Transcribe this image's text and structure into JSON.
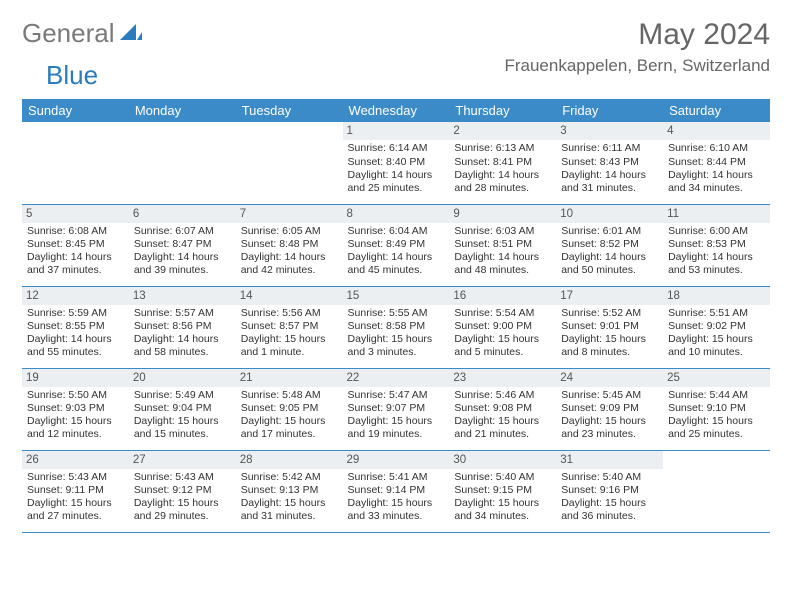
{
  "brand": {
    "part1": "General",
    "part2": "Blue"
  },
  "title": "May 2024",
  "location": "Frauenkappelen, Bern, Switzerland",
  "colors": {
    "header_bg": "#3b8bc9",
    "header_text": "#ffffff",
    "border": "#3b8bc9",
    "daynum_bg": "#eceff1",
    "text": "#333333",
    "brand_gray": "#7a7a7a",
    "brand_blue": "#2b7bbf"
  },
  "day_headers": [
    "Sunday",
    "Monday",
    "Tuesday",
    "Wednesday",
    "Thursday",
    "Friday",
    "Saturday"
  ],
  "weeks": [
    [
      {
        "blank": true
      },
      {
        "blank": true
      },
      {
        "blank": true
      },
      {
        "day": "1",
        "sunrise": "Sunrise: 6:14 AM",
        "sunset": "Sunset: 8:40 PM",
        "daylight1": "Daylight: 14 hours",
        "daylight2": "and 25 minutes."
      },
      {
        "day": "2",
        "sunrise": "Sunrise: 6:13 AM",
        "sunset": "Sunset: 8:41 PM",
        "daylight1": "Daylight: 14 hours",
        "daylight2": "and 28 minutes."
      },
      {
        "day": "3",
        "sunrise": "Sunrise: 6:11 AM",
        "sunset": "Sunset: 8:43 PM",
        "daylight1": "Daylight: 14 hours",
        "daylight2": "and 31 minutes."
      },
      {
        "day": "4",
        "sunrise": "Sunrise: 6:10 AM",
        "sunset": "Sunset: 8:44 PM",
        "daylight1": "Daylight: 14 hours",
        "daylight2": "and 34 minutes."
      }
    ],
    [
      {
        "day": "5",
        "sunrise": "Sunrise: 6:08 AM",
        "sunset": "Sunset: 8:45 PM",
        "daylight1": "Daylight: 14 hours",
        "daylight2": "and 37 minutes."
      },
      {
        "day": "6",
        "sunrise": "Sunrise: 6:07 AM",
        "sunset": "Sunset: 8:47 PM",
        "daylight1": "Daylight: 14 hours",
        "daylight2": "and 39 minutes."
      },
      {
        "day": "7",
        "sunrise": "Sunrise: 6:05 AM",
        "sunset": "Sunset: 8:48 PM",
        "daylight1": "Daylight: 14 hours",
        "daylight2": "and 42 minutes."
      },
      {
        "day": "8",
        "sunrise": "Sunrise: 6:04 AM",
        "sunset": "Sunset: 8:49 PM",
        "daylight1": "Daylight: 14 hours",
        "daylight2": "and 45 minutes."
      },
      {
        "day": "9",
        "sunrise": "Sunrise: 6:03 AM",
        "sunset": "Sunset: 8:51 PM",
        "daylight1": "Daylight: 14 hours",
        "daylight2": "and 48 minutes."
      },
      {
        "day": "10",
        "sunrise": "Sunrise: 6:01 AM",
        "sunset": "Sunset: 8:52 PM",
        "daylight1": "Daylight: 14 hours",
        "daylight2": "and 50 minutes."
      },
      {
        "day": "11",
        "sunrise": "Sunrise: 6:00 AM",
        "sunset": "Sunset: 8:53 PM",
        "daylight1": "Daylight: 14 hours",
        "daylight2": "and 53 minutes."
      }
    ],
    [
      {
        "day": "12",
        "sunrise": "Sunrise: 5:59 AM",
        "sunset": "Sunset: 8:55 PM",
        "daylight1": "Daylight: 14 hours",
        "daylight2": "and 55 minutes."
      },
      {
        "day": "13",
        "sunrise": "Sunrise: 5:57 AM",
        "sunset": "Sunset: 8:56 PM",
        "daylight1": "Daylight: 14 hours",
        "daylight2": "and 58 minutes."
      },
      {
        "day": "14",
        "sunrise": "Sunrise: 5:56 AM",
        "sunset": "Sunset: 8:57 PM",
        "daylight1": "Daylight: 15 hours",
        "daylight2": "and 1 minute."
      },
      {
        "day": "15",
        "sunrise": "Sunrise: 5:55 AM",
        "sunset": "Sunset: 8:58 PM",
        "daylight1": "Daylight: 15 hours",
        "daylight2": "and 3 minutes."
      },
      {
        "day": "16",
        "sunrise": "Sunrise: 5:54 AM",
        "sunset": "Sunset: 9:00 PM",
        "daylight1": "Daylight: 15 hours",
        "daylight2": "and 5 minutes."
      },
      {
        "day": "17",
        "sunrise": "Sunrise: 5:52 AM",
        "sunset": "Sunset: 9:01 PM",
        "daylight1": "Daylight: 15 hours",
        "daylight2": "and 8 minutes."
      },
      {
        "day": "18",
        "sunrise": "Sunrise: 5:51 AM",
        "sunset": "Sunset: 9:02 PM",
        "daylight1": "Daylight: 15 hours",
        "daylight2": "and 10 minutes."
      }
    ],
    [
      {
        "day": "19",
        "sunrise": "Sunrise: 5:50 AM",
        "sunset": "Sunset: 9:03 PM",
        "daylight1": "Daylight: 15 hours",
        "daylight2": "and 12 minutes."
      },
      {
        "day": "20",
        "sunrise": "Sunrise: 5:49 AM",
        "sunset": "Sunset: 9:04 PM",
        "daylight1": "Daylight: 15 hours",
        "daylight2": "and 15 minutes."
      },
      {
        "day": "21",
        "sunrise": "Sunrise: 5:48 AM",
        "sunset": "Sunset: 9:05 PM",
        "daylight1": "Daylight: 15 hours",
        "daylight2": "and 17 minutes."
      },
      {
        "day": "22",
        "sunrise": "Sunrise: 5:47 AM",
        "sunset": "Sunset: 9:07 PM",
        "daylight1": "Daylight: 15 hours",
        "daylight2": "and 19 minutes."
      },
      {
        "day": "23",
        "sunrise": "Sunrise: 5:46 AM",
        "sunset": "Sunset: 9:08 PM",
        "daylight1": "Daylight: 15 hours",
        "daylight2": "and 21 minutes."
      },
      {
        "day": "24",
        "sunrise": "Sunrise: 5:45 AM",
        "sunset": "Sunset: 9:09 PM",
        "daylight1": "Daylight: 15 hours",
        "daylight2": "and 23 minutes."
      },
      {
        "day": "25",
        "sunrise": "Sunrise: 5:44 AM",
        "sunset": "Sunset: 9:10 PM",
        "daylight1": "Daylight: 15 hours",
        "daylight2": "and 25 minutes."
      }
    ],
    [
      {
        "day": "26",
        "sunrise": "Sunrise: 5:43 AM",
        "sunset": "Sunset: 9:11 PM",
        "daylight1": "Daylight: 15 hours",
        "daylight2": "and 27 minutes."
      },
      {
        "day": "27",
        "sunrise": "Sunrise: 5:43 AM",
        "sunset": "Sunset: 9:12 PM",
        "daylight1": "Daylight: 15 hours",
        "daylight2": "and 29 minutes."
      },
      {
        "day": "28",
        "sunrise": "Sunrise: 5:42 AM",
        "sunset": "Sunset: 9:13 PM",
        "daylight1": "Daylight: 15 hours",
        "daylight2": "and 31 minutes."
      },
      {
        "day": "29",
        "sunrise": "Sunrise: 5:41 AM",
        "sunset": "Sunset: 9:14 PM",
        "daylight1": "Daylight: 15 hours",
        "daylight2": "and 33 minutes."
      },
      {
        "day": "30",
        "sunrise": "Sunrise: 5:40 AM",
        "sunset": "Sunset: 9:15 PM",
        "daylight1": "Daylight: 15 hours",
        "daylight2": "and 34 minutes."
      },
      {
        "day": "31",
        "sunrise": "Sunrise: 5:40 AM",
        "sunset": "Sunset: 9:16 PM",
        "daylight1": "Daylight: 15 hours",
        "daylight2": "and 36 minutes."
      },
      {
        "blank": true
      }
    ]
  ]
}
